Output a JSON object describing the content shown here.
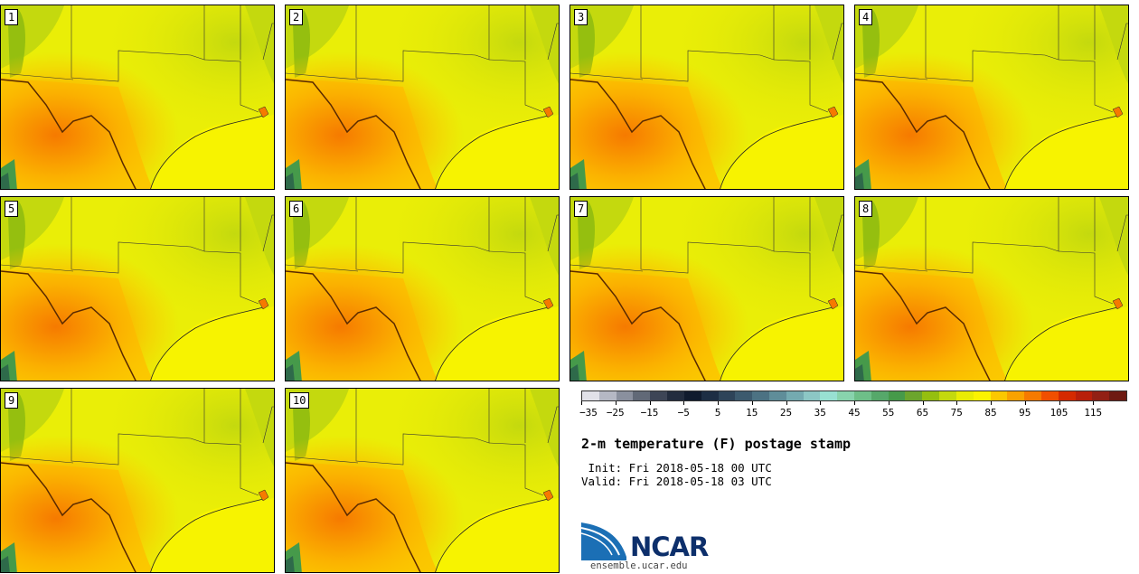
{
  "panels": [
    {
      "label": "1"
    },
    {
      "label": "2"
    },
    {
      "label": "3"
    },
    {
      "label": "4"
    },
    {
      "label": "5"
    },
    {
      "label": "6"
    },
    {
      "label": "7"
    },
    {
      "label": "8"
    },
    {
      "label": "9"
    },
    {
      "label": "10"
    }
  ],
  "colorbar": {
    "colors": [
      "#e1e1e8",
      "#b5b8c4",
      "#8a909e",
      "#616977",
      "#3d4556",
      "#222c3e",
      "#101b2e",
      "#1d2e44",
      "#2e4459",
      "#3c5a6e",
      "#4c7283",
      "#5f8d99",
      "#74aab0",
      "#8cc7c5",
      "#98e0d2",
      "#88d3ad",
      "#6ebf88",
      "#56a86a",
      "#469a4a",
      "#6ca52d",
      "#95bf0f",
      "#c4d90e",
      "#e9ec04",
      "#fbf300",
      "#fbc800",
      "#f9a200",
      "#f67a00",
      "#f14f00",
      "#d52a00",
      "#b81f0a",
      "#922014",
      "#6e1a12"
    ],
    "ticks": [
      "−35",
      "−25",
      "−15",
      "−5",
      "5",
      "15",
      "25",
      "35",
      "45",
      "55",
      "65",
      "75",
      "85",
      "95",
      "105",
      "115"
    ]
  },
  "title": "2-m temperature (F) postage stamp",
  "init_line": " Init: Fri 2018-05-18 00 UTC",
  "valid_line": "Valid: Fri 2018-05-18 03 UTC",
  "logo": {
    "name": "NCAR",
    "url": "ensemble.ucar.edu",
    "color": "#0d2f6b",
    "accent": "#1b6fb5"
  }
}
